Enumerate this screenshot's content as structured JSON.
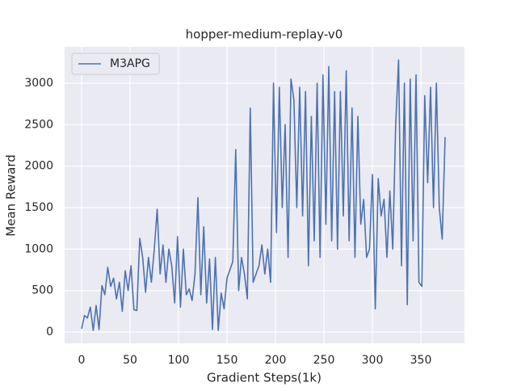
{
  "chart_data": {
    "type": "line",
    "title": "hopper-medium-replay-v0",
    "x_label": "Gradient Steps(1k)",
    "y_label": "Mean Reward",
    "x": [
      0,
      3,
      6,
      9,
      12,
      15,
      18,
      21,
      24,
      27,
      30,
      33,
      36,
      39,
      42,
      45,
      48,
      51,
      54,
      57,
      60,
      63,
      66,
      69,
      72,
      75,
      78,
      81,
      84,
      87,
      90,
      93,
      96,
      99,
      102,
      105,
      108,
      111,
      114,
      117,
      120,
      123,
      126,
      129,
      132,
      135,
      138,
      141,
      144,
      147,
      150,
      153,
      156,
      159,
      162,
      165,
      168,
      171,
      174,
      177,
      180,
      183,
      186,
      189,
      192,
      195,
      198,
      201,
      204,
      207,
      210,
      213,
      216,
      219,
      222,
      225,
      228,
      231,
      234,
      237,
      240,
      243,
      246,
      249,
      252,
      255,
      258,
      261,
      264,
      267,
      270,
      273,
      276,
      279,
      282,
      285,
      288,
      291,
      294,
      297,
      300,
      303,
      306,
      309,
      312,
      315,
      318,
      321,
      324,
      327,
      330,
      333,
      336,
      339,
      342,
      345,
      348,
      351,
      354,
      357,
      360,
      363,
      366,
      369,
      372,
      375
    ],
    "series": [
      {
        "name": "M3APG",
        "color": "#4c72b0",
        "values": [
          40,
          200,
          170,
          300,
          20,
          320,
          30,
          560,
          450,
          780,
          550,
          650,
          400,
          600,
          250,
          740,
          500,
          800,
          270,
          260,
          1130,
          900,
          480,
          900,
          600,
          1000,
          1480,
          700,
          1050,
          600,
          1000,
          800,
          350,
          1150,
          300,
          1000,
          450,
          520,
          380,
          700,
          1620,
          450,
          1270,
          350,
          880,
          30,
          900,
          20,
          470,
          280,
          650,
          750,
          850,
          2200,
          500,
          900,
          700,
          400,
          2700,
          600,
          700,
          800,
          1050,
          700,
          1000,
          600,
          3000,
          1200,
          2950,
          1500,
          2500,
          900,
          3050,
          2800,
          1500,
          2950,
          1400,
          2900,
          800,
          2600,
          1100,
          3000,
          900,
          3100,
          1300,
          3200,
          1100,
          2900,
          1000,
          2900,
          1400,
          3150,
          1100,
          2700,
          900,
          2600,
          1300,
          1600,
          900,
          1000,
          1900,
          280,
          1850,
          1400,
          1600,
          900,
          1700,
          1000,
          2500,
          3280,
          800,
          3000,
          330,
          3050,
          1100,
          3100,
          600,
          550,
          2850,
          1800,
          2950,
          1500,
          3000,
          1500,
          1120,
          2350
        ]
      }
    ],
    "xlim": [
      -17.5,
      395
    ],
    "ylim": [
      -136,
      3438
    ],
    "xticks": [
      0,
      50,
      100,
      150,
      200,
      250,
      300,
      350
    ],
    "yticks": [
      0,
      500,
      1000,
      1500,
      2000,
      2500,
      3000
    ],
    "grid": true,
    "legend": "upper-left"
  }
}
